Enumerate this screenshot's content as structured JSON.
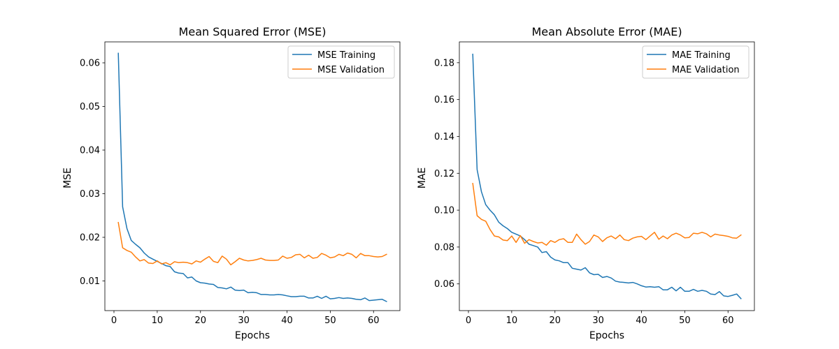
{
  "chart_data": [
    {
      "type": "line",
      "title": "Mean Squared Error (MSE)",
      "xlabel": "Epochs",
      "ylabel": "MSE",
      "xlim": [
        -2.1,
        66.1
      ],
      "ylim": [
        0.0032,
        0.0648
      ],
      "xticks": [
        0,
        10,
        20,
        30,
        40,
        50,
        60
      ],
      "yticks": [
        0.01,
        0.02,
        0.03,
        0.04,
        0.05,
        0.06
      ],
      "ytick_decimals": 2,
      "grid": false,
      "legend_position": "upper right",
      "x": [
        1,
        2,
        3,
        4,
        5,
        6,
        7,
        8,
        9,
        10,
        11,
        12,
        13,
        14,
        15,
        16,
        17,
        18,
        19,
        20,
        21,
        22,
        23,
        24,
        25,
        26,
        27,
        28,
        29,
        30,
        31,
        32,
        33,
        34,
        35,
        36,
        37,
        38,
        39,
        40,
        41,
        42,
        43,
        44,
        45,
        46,
        47,
        48,
        49,
        50,
        51,
        52,
        53,
        54,
        55,
        56,
        57,
        58,
        59,
        60,
        61,
        62,
        63
      ],
      "series": [
        {
          "name": "MSE Training",
          "color": "#1f77b4",
          "values": [
            0.0622,
            0.027,
            0.022,
            0.0193,
            0.0184,
            0.0176,
            0.0164,
            0.0155,
            0.015,
            0.0145,
            0.014,
            0.0135,
            0.0133,
            0.0121,
            0.0118,
            0.0117,
            0.0107,
            0.0109,
            0.01,
            0.0096,
            0.0095,
            0.0093,
            0.0092,
            0.0085,
            0.0084,
            0.0082,
            0.0086,
            0.0079,
            0.0078,
            0.0079,
            0.0073,
            0.0074,
            0.0073,
            0.0069,
            0.0069,
            0.0068,
            0.0068,
            0.0069,
            0.0068,
            0.0066,
            0.0064,
            0.0064,
            0.0065,
            0.0065,
            0.0061,
            0.0061,
            0.0065,
            0.006,
            0.0065,
            0.0059,
            0.006,
            0.0062,
            0.006,
            0.0061,
            0.006,
            0.0058,
            0.0057,
            0.0061,
            0.0055,
            0.0056,
            0.0057,
            0.0058,
            0.0053
          ]
        },
        {
          "name": "MSE Validation",
          "color": "#ff7f0e",
          "values": [
            0.0234,
            0.0176,
            0.017,
            0.0166,
            0.0155,
            0.0146,
            0.0149,
            0.0141,
            0.014,
            0.0146,
            0.0139,
            0.0142,
            0.0137,
            0.0144,
            0.0142,
            0.0143,
            0.0142,
            0.0139,
            0.0146,
            0.0143,
            0.015,
            0.0156,
            0.0145,
            0.0142,
            0.0157,
            0.015,
            0.0137,
            0.0144,
            0.0152,
            0.0148,
            0.0146,
            0.0147,
            0.0149,
            0.0152,
            0.0148,
            0.0147,
            0.0147,
            0.0148,
            0.0157,
            0.0152,
            0.0154,
            0.016,
            0.0161,
            0.0153,
            0.0159,
            0.0152,
            0.0154,
            0.0163,
            0.0159,
            0.0153,
            0.0155,
            0.0161,
            0.0158,
            0.0164,
            0.0161,
            0.0153,
            0.0163,
            0.0158,
            0.0158,
            0.0156,
            0.0155,
            0.0156,
            0.0161
          ]
        }
      ]
    },
    {
      "type": "line",
      "title": "Mean Absolute Error (MAE)",
      "xlabel": "Epochs",
      "ylabel": "MAE",
      "xlim": [
        -2.1,
        66.1
      ],
      "ylim": [
        0.0455,
        0.1913
      ],
      "xticks": [
        0,
        10,
        20,
        30,
        40,
        50,
        60
      ],
      "yticks": [
        0.06,
        0.08,
        0.1,
        0.12,
        0.14,
        0.16,
        0.18
      ],
      "ytick_decimals": 2,
      "grid": false,
      "legend_position": "upper right",
      "x": [
        1,
        2,
        3,
        4,
        5,
        6,
        7,
        8,
        9,
        10,
        11,
        12,
        13,
        14,
        15,
        16,
        17,
        18,
        19,
        20,
        21,
        22,
        23,
        24,
        25,
        26,
        27,
        28,
        29,
        30,
        31,
        32,
        33,
        34,
        35,
        36,
        37,
        38,
        39,
        40,
        41,
        42,
        43,
        44,
        45,
        46,
        47,
        48,
        49,
        50,
        51,
        52,
        53,
        54,
        55,
        56,
        57,
        58,
        59,
        60,
        61,
        62,
        63
      ],
      "series": [
        {
          "name": "MAE Training",
          "color": "#1f77b4",
          "values": [
            0.1846,
            0.122,
            0.11,
            0.103,
            0.1,
            0.0975,
            0.0935,
            0.0915,
            0.09,
            0.088,
            0.087,
            0.086,
            0.084,
            0.0815,
            0.0808,
            0.08,
            0.077,
            0.0775,
            0.0745,
            0.073,
            0.0725,
            0.0715,
            0.0715,
            0.0685,
            0.068,
            0.0675,
            0.0688,
            0.066,
            0.065,
            0.0652,
            0.0635,
            0.064,
            0.0632,
            0.0615,
            0.061,
            0.0608,
            0.0605,
            0.0608,
            0.06,
            0.059,
            0.0583,
            0.0585,
            0.0582,
            0.0585,
            0.0568,
            0.0568,
            0.0582,
            0.0562,
            0.0582,
            0.056,
            0.056,
            0.057,
            0.056,
            0.0565,
            0.056,
            0.0545,
            0.0542,
            0.0558,
            0.0535,
            0.0532,
            0.0538,
            0.0545,
            0.052
          ]
        },
        {
          "name": "MAE Validation",
          "color": "#ff7f0e",
          "values": [
            0.1145,
            0.097,
            0.095,
            0.094,
            0.0895,
            0.086,
            0.0855,
            0.0838,
            0.0835,
            0.086,
            0.0825,
            0.0862,
            0.082,
            0.084,
            0.083,
            0.0822,
            0.0825,
            0.081,
            0.0835,
            0.0825,
            0.084,
            0.0845,
            0.0825,
            0.0825,
            0.087,
            0.084,
            0.0815,
            0.083,
            0.0865,
            0.0855,
            0.083,
            0.085,
            0.086,
            0.0845,
            0.0865,
            0.084,
            0.0835,
            0.0848,
            0.0855,
            0.0858,
            0.084,
            0.086,
            0.088,
            0.0842,
            0.086,
            0.0845,
            0.0865,
            0.0875,
            0.0865,
            0.085,
            0.0852,
            0.0875,
            0.0872,
            0.088,
            0.0872,
            0.0855,
            0.087,
            0.0865,
            0.0862,
            0.0858,
            0.085,
            0.0848,
            0.0865
          ]
        }
      ]
    }
  ]
}
